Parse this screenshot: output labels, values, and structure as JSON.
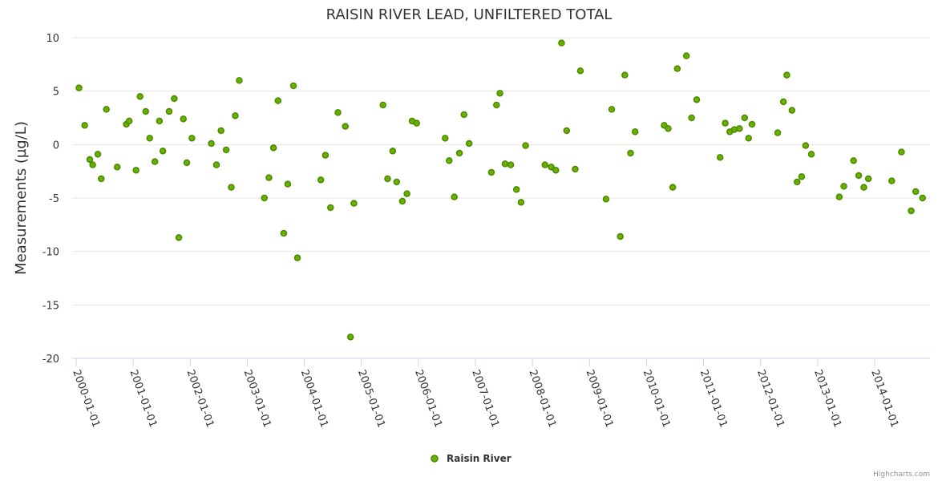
{
  "chart_data": {
    "type": "scatter",
    "title": "RAISIN RIVER LEAD, UNFILTERED TOTAL",
    "ylabel": "Measurements (µg/L)",
    "xlabel": "",
    "ylim": [
      -20,
      10
    ],
    "yticks": [
      10,
      5,
      0,
      -5,
      -10,
      -15,
      -20
    ],
    "xlim": [
      1999.93,
      2014.97
    ],
    "xticks": [
      {
        "value": 2000.0,
        "label": "2000-01-01"
      },
      {
        "value": 2001.0,
        "label": "2001-01-01"
      },
      {
        "value": 2002.0,
        "label": "2002-01-01"
      },
      {
        "value": 2003.0,
        "label": "2003-01-01"
      },
      {
        "value": 2004.0,
        "label": "2004-01-01"
      },
      {
        "value": 2005.0,
        "label": "2005-01-01"
      },
      {
        "value": 2006.0,
        "label": "2006-01-01"
      },
      {
        "value": 2007.0,
        "label": "2007-01-01"
      },
      {
        "value": 2008.0,
        "label": "2008-01-01"
      },
      {
        "value": 2009.0,
        "label": "2009-01-01"
      },
      {
        "value": 2010.0,
        "label": "2010-01-01"
      },
      {
        "value": 2011.0,
        "label": "2011-01-01"
      },
      {
        "value": 2012.0,
        "label": "2012-01-01"
      },
      {
        "value": 2013.0,
        "label": "2013-01-01"
      },
      {
        "value": 2014.0,
        "label": "2014-01-01"
      }
    ],
    "legend_position": "bottom-center",
    "grid": true,
    "series": [
      {
        "name": "Raisin River",
        "color": "#6ab000",
        "points": [
          [
            2000.05,
            5.3
          ],
          [
            2000.15,
            1.8
          ],
          [
            2000.24,
            -1.4
          ],
          [
            2000.29,
            -1.9
          ],
          [
            2000.38,
            -0.9
          ],
          [
            2000.44,
            -3.2
          ],
          [
            2000.53,
            3.3
          ],
          [
            2000.72,
            -2.1
          ],
          [
            2000.88,
            1.9
          ],
          [
            2000.93,
            2.2
          ],
          [
            2001.05,
            -2.4
          ],
          [
            2001.12,
            4.5
          ],
          [
            2001.22,
            3.1
          ],
          [
            2001.29,
            0.6
          ],
          [
            2001.38,
            -1.6
          ],
          [
            2001.46,
            2.2
          ],
          [
            2001.52,
            -0.6
          ],
          [
            2001.63,
            3.1
          ],
          [
            2001.72,
            4.3
          ],
          [
            2001.8,
            -8.7
          ],
          [
            2001.88,
            2.4
          ],
          [
            2001.94,
            -1.7
          ],
          [
            2002.03,
            0.6
          ],
          [
            2002.37,
            0.1
          ],
          [
            2002.46,
            -1.9
          ],
          [
            2002.54,
            1.3
          ],
          [
            2002.63,
            -0.5
          ],
          [
            2002.72,
            -4.0
          ],
          [
            2002.79,
            2.7
          ],
          [
            2002.86,
            6.0
          ],
          [
            2003.3,
            -5.0
          ],
          [
            2003.38,
            -3.1
          ],
          [
            2003.46,
            -0.3
          ],
          [
            2003.54,
            4.1
          ],
          [
            2003.64,
            -8.3
          ],
          [
            2003.71,
            -3.7
          ],
          [
            2003.81,
            5.5
          ],
          [
            2003.88,
            -10.6
          ],
          [
            2004.29,
            -3.3
          ],
          [
            2004.37,
            -1.0
          ],
          [
            2004.46,
            -5.9
          ],
          [
            2004.59,
            3.0
          ],
          [
            2004.72,
            1.7
          ],
          [
            2004.81,
            -18.0
          ],
          [
            2004.87,
            -5.5
          ],
          [
            2005.38,
            3.7
          ],
          [
            2005.46,
            -3.2
          ],
          [
            2005.55,
            -0.6
          ],
          [
            2005.62,
            -3.5
          ],
          [
            2005.72,
            -5.3
          ],
          [
            2005.8,
            -4.6
          ],
          [
            2005.89,
            2.2
          ],
          [
            2005.97,
            2.0
          ],
          [
            2006.47,
            0.6
          ],
          [
            2006.54,
            -1.5
          ],
          [
            2006.63,
            -4.9
          ],
          [
            2006.72,
            -0.8
          ],
          [
            2006.8,
            2.8
          ],
          [
            2006.89,
            0.1
          ],
          [
            2007.28,
            -2.6
          ],
          [
            2007.37,
            3.7
          ],
          [
            2007.43,
            4.8
          ],
          [
            2007.52,
            -1.8
          ],
          [
            2007.62,
            -1.9
          ],
          [
            2007.72,
            -4.2
          ],
          [
            2007.8,
            -5.4
          ],
          [
            2007.88,
            -0.1
          ],
          [
            2008.22,
            -1.9
          ],
          [
            2008.33,
            -2.1
          ],
          [
            2008.41,
            -2.4
          ],
          [
            2008.51,
            9.5
          ],
          [
            2008.6,
            1.3
          ],
          [
            2008.75,
            -2.3
          ],
          [
            2008.84,
            6.9
          ],
          [
            2009.29,
            -5.1
          ],
          [
            2009.39,
            3.3
          ],
          [
            2009.54,
            -8.6
          ],
          [
            2009.62,
            6.5
          ],
          [
            2009.72,
            -0.8
          ],
          [
            2009.8,
            1.2
          ],
          [
            2010.31,
            1.8
          ],
          [
            2010.38,
            1.5
          ],
          [
            2010.46,
            -4.0
          ],
          [
            2010.54,
            7.1
          ],
          [
            2010.7,
            8.3
          ],
          [
            2010.79,
            2.5
          ],
          [
            2010.88,
            4.2
          ],
          [
            2011.29,
            -1.2
          ],
          [
            2011.38,
            2.0
          ],
          [
            2011.46,
            1.2
          ],
          [
            2011.54,
            1.4
          ],
          [
            2011.63,
            1.5
          ],
          [
            2011.72,
            2.5
          ],
          [
            2011.79,
            0.6
          ],
          [
            2011.85,
            1.9
          ],
          [
            2012.3,
            1.1
          ],
          [
            2012.4,
            4.0
          ],
          [
            2012.46,
            6.5
          ],
          [
            2012.55,
            3.2
          ],
          [
            2012.64,
            -3.5
          ],
          [
            2012.72,
            -3.0
          ],
          [
            2012.79,
            -0.1
          ],
          [
            2012.89,
            -0.9
          ],
          [
            2013.38,
            -4.9
          ],
          [
            2013.46,
            -3.9
          ],
          [
            2013.63,
            -1.5
          ],
          [
            2013.72,
            -2.9
          ],
          [
            2013.81,
            -4.0
          ],
          [
            2013.89,
            -3.2
          ],
          [
            2014.3,
            -3.4
          ],
          [
            2014.47,
            -0.7
          ],
          [
            2014.64,
            -6.2
          ],
          [
            2014.72,
            -4.4
          ],
          [
            2014.84,
            -5.0
          ]
        ]
      }
    ],
    "credits": "Highcharts.com"
  }
}
